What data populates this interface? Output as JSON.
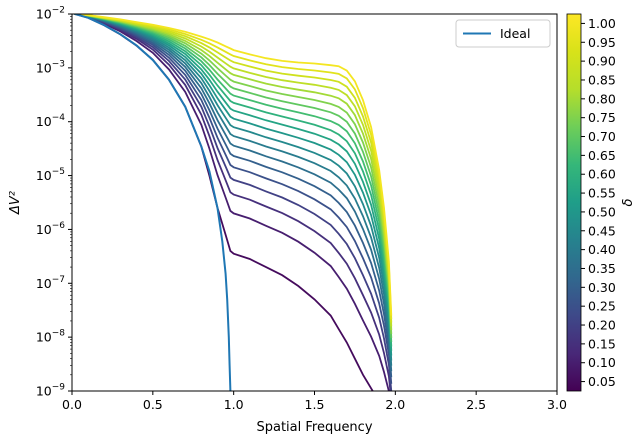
{
  "chart_data": {
    "type": "line",
    "xlabel": "Spatial Frequency",
    "ylabel": "ΔV²",
    "xlim": [
      0.0,
      3.0
    ],
    "ylim": [
      1e-09,
      0.01
    ],
    "yscale": "log",
    "x_ticks": [
      "0.0",
      "0.5",
      "1.0",
      "1.5",
      "2.0",
      "2.5",
      "3.0"
    ],
    "y_ticks": [
      {
        "base": "10",
        "exp": "−2",
        "value": 0.01
      },
      {
        "base": "10",
        "exp": "−3",
        "value": 0.001
      },
      {
        "base": "10",
        "exp": "−4",
        "value": 0.0001
      },
      {
        "base": "10",
        "exp": "−5",
        "value": 1e-05
      },
      {
        "base": "10",
        "exp": "−6",
        "value": 1e-06
      },
      {
        "base": "10",
        "exp": "−7",
        "value": 1e-07
      },
      {
        "base": "10",
        "exp": "−8",
        "value": 1e-08
      },
      {
        "base": "10",
        "exp": "−9",
        "value": 1e-09
      }
    ],
    "grid": false,
    "legend": {
      "position": "top-right",
      "entries": [
        {
          "label": "Ideal",
          "color": "#1f77b4"
        }
      ]
    },
    "colorbar": {
      "label": "δ",
      "colormap": "viridis",
      "range": [
        0.025,
        1.025
      ],
      "ticks": [
        "0.05",
        "0.10",
        "0.15",
        "0.20",
        "0.25",
        "0.30",
        "0.35",
        "0.40",
        "0.45",
        "0.50",
        "0.55",
        "0.60",
        "0.65",
        "0.70",
        "0.75",
        "0.80",
        "0.85",
        "0.90",
        "0.95",
        "1.00"
      ]
    },
    "ideal": {
      "name": "Ideal",
      "color": "#1f77b4",
      "x": [
        0.0,
        0.02,
        0.1,
        0.2,
        0.3,
        0.4,
        0.5,
        0.6,
        0.7,
        0.8,
        0.85,
        0.9,
        0.93,
        0.95,
        0.96,
        0.97,
        0.975,
        0.98
      ],
      "y": [
        0.0105,
        0.01,
        0.0085,
        0.0062,
        0.0042,
        0.0026,
        0.0014,
        0.0006,
        0.00019,
        3.5e-05,
        1.2e-05,
        2.5e-06,
        6e-07,
        1.5e-07,
        5e-08,
        1e-08,
        3e-09,
        1e-09
      ]
    },
    "delta_values": [
      0.05,
      0.1,
      0.15,
      0.2,
      0.25,
      0.3,
      0.35,
      0.4,
      0.45,
      0.5,
      0.55,
      0.6,
      0.65,
      0.7,
      0.75,
      0.8,
      0.85,
      0.9,
      0.95,
      1.0
    ],
    "series_model": {
      "x": [
        0.0,
        0.02,
        0.1,
        0.2,
        0.3,
        0.4,
        0.5,
        0.6,
        0.7,
        0.8,
        0.85,
        0.9,
        0.95,
        0.98,
        1.0,
        1.1,
        1.2,
        1.3,
        1.4,
        1.5,
        1.6,
        1.65,
        1.7,
        1.75,
        1.8,
        1.85,
        1.9,
        1.93,
        1.96,
        1.975
      ],
      "log10_y_delta_low": [
        -1.98,
        -2.0,
        -2.07,
        -2.21,
        -2.38,
        -2.59,
        -2.85,
        -3.22,
        -3.72,
        -4.46,
        -5.0,
        -5.6,
        -6.1,
        -6.4,
        -6.45,
        -6.55,
        -6.7,
        -6.85,
        -7.05,
        -7.3,
        -7.6,
        -7.85,
        -8.1,
        -8.4,
        -8.7,
        -8.95,
        -9.2,
        -9.4,
        -9.6,
        -9.8
      ],
      "log10_y_delta_high": [
        -1.98,
        -2.0,
        -2.02,
        -2.06,
        -2.1,
        -2.15,
        -2.2,
        -2.26,
        -2.33,
        -2.42,
        -2.47,
        -2.53,
        -2.6,
        -2.64,
        -2.67,
        -2.75,
        -2.82,
        -2.87,
        -2.9,
        -2.92,
        -2.95,
        -2.97,
        -3.05,
        -3.25,
        -3.6,
        -4.1,
        -4.9,
        -5.6,
        -6.6,
        -7.6
      ]
    }
  }
}
